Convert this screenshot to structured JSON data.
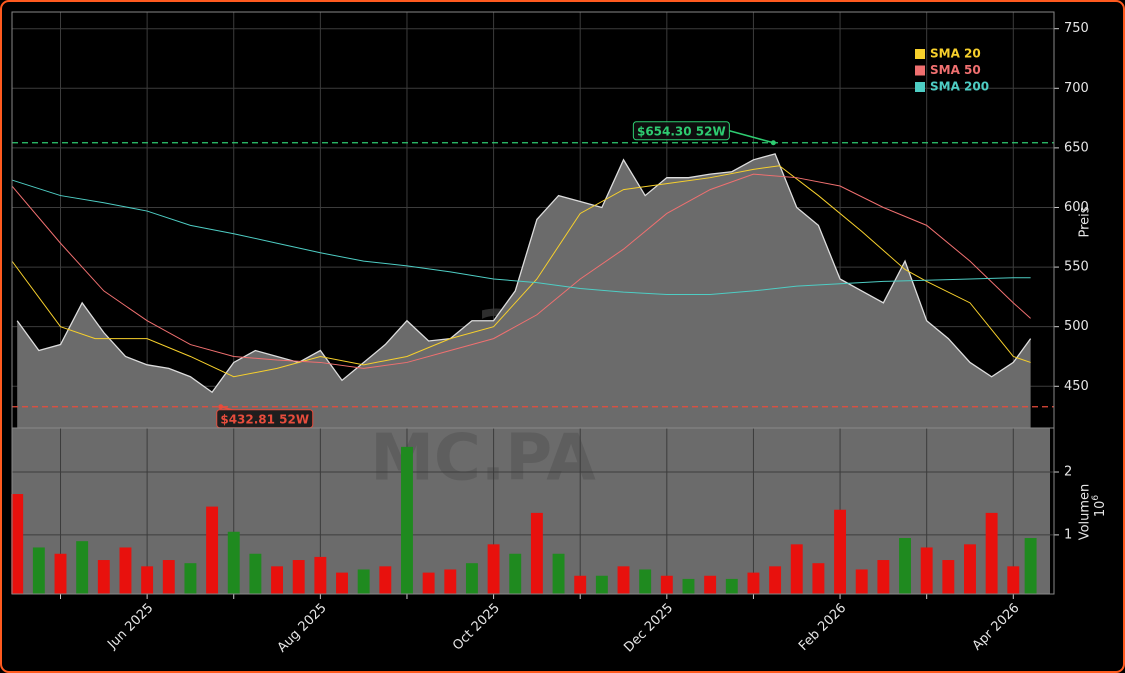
{
  "chart_data": [
    {
      "type": "line",
      "ylabel": "Preis",
      "ylim": [
        415,
        764
      ],
      "yticks": [
        450,
        500,
        550,
        600,
        650,
        700,
        750
      ],
      "xlim": [
        -0.56,
        11.47
      ],
      "xgrid": [
        0,
        1,
        2,
        3,
        4,
        5,
        6,
        7,
        8,
        9,
        10,
        11
      ],
      "grid": true,
      "legend": "upper right",
      "watermark": "ale.trade",
      "series": [
        {
          "color": "#dddddd",
          "fill": "#6b6b6b",
          "x": [
            -0.5,
            -0.25,
            0,
            0.25,
            0.5,
            0.75,
            1,
            1.25,
            1.5,
            1.75,
            2,
            2.25,
            2.5,
            2.75,
            3,
            3.25,
            3.5,
            3.75,
            4,
            4.25,
            4.5,
            4.75,
            5,
            5.25,
            5.5,
            5.75,
            6,
            6.25,
            6.5,
            6.75,
            7,
            7.25,
            7.5,
            7.75,
            8,
            8.25,
            8.5,
            8.75,
            9,
            9.25,
            9.5,
            9.75,
            10,
            10.25,
            10.5,
            10.75,
            11,
            11.2
          ],
          "values": [
            505,
            480,
            485,
            520,
            495,
            475,
            468,
            465,
            458,
            445,
            470,
            480,
            475,
            470,
            480,
            455,
            470,
            485,
            505,
            488,
            490,
            505,
            505,
            530,
            590,
            610,
            605,
            600,
            640,
            610,
            625,
            625,
            628,
            630,
            640,
            645,
            600,
            585,
            540,
            530,
            520,
            555,
            505,
            490,
            470,
            458,
            470,
            490
          ]
        },
        {
          "name": "SMA 20",
          "color": "#f7d02c",
          "x": [
            -0.56,
            0,
            0.4,
            1,
            1.5,
            2,
            2.5,
            3,
            3.5,
            4,
            4.5,
            5,
            5.5,
            6,
            6.5,
            7,
            7.5,
            8,
            8.3,
            8.75,
            9.25,
            9.75,
            10,
            10.5,
            11,
            11.2
          ],
          "values": [
            555,
            500,
            490,
            490,
            475,
            458,
            465,
            475,
            468,
            475,
            490,
            500,
            540,
            595,
            615,
            620,
            625,
            632,
            635,
            610,
            580,
            548,
            538,
            520,
            475,
            470
          ]
        },
        {
          "name": "SMA 50",
          "color": "#f07070",
          "x": [
            -0.56,
            0,
            0.5,
            1,
            1.5,
            2,
            2.5,
            3,
            3.5,
            4,
            4.5,
            5,
            5.5,
            6,
            6.5,
            7,
            7.5,
            8,
            8.5,
            9,
            9.5,
            10,
            10.5,
            11,
            11.2
          ],
          "values": [
            618,
            570,
            530,
            505,
            485,
            475,
            472,
            470,
            465,
            470,
            480,
            490,
            510,
            540,
            565,
            595,
            615,
            628,
            625,
            618,
            600,
            585,
            555,
            520,
            507
          ]
        },
        {
          "name": "SMA 200",
          "color": "#4ecdc4",
          "x": [
            -0.56,
            0,
            0.5,
            1,
            1.5,
            2,
            2.5,
            3,
            3.5,
            4,
            4.5,
            5,
            5.5,
            6,
            6.5,
            7,
            7.5,
            8,
            8.5,
            9,
            9.5,
            10,
            10.5,
            11,
            11.2
          ],
          "values": [
            623,
            610,
            604,
            597,
            585,
            578,
            570,
            562,
            555,
            551,
            546,
            540,
            537,
            532,
            529,
            527,
            527,
            530,
            534,
            536,
            538,
            539,
            540,
            541,
            541
          ]
        }
      ],
      "annotations": [
        {
          "label": "$654.30 52W",
          "value": 654.3,
          "x": 8.23,
          "color": "#2ecc71"
        },
        {
          "label": "$432.81 52W",
          "value": 432.81,
          "x": 1.85,
          "color": "#e74c3c"
        }
      ]
    },
    {
      "type": "bar",
      "ylabel": "Volumen",
      "exponent": "10",
      "exponent_power": "6",
      "ylim": [
        0.06,
        2.7
      ],
      "yticks": [
        1,
        2
      ],
      "xlim": [
        -0.56,
        11.47
      ],
      "xgrid": [
        0,
        1,
        2,
        3,
        4,
        5,
        6,
        7,
        8,
        9,
        10,
        11
      ],
      "xticks": [
        {
          "value": 1,
          "label": "Jun 2025"
        },
        {
          "value": 3,
          "label": "Aug 2025"
        },
        {
          "value": 5,
          "label": "Oct 2025"
        },
        {
          "value": 7,
          "label": "Dec 2025"
        },
        {
          "value": 9,
          "label": "Feb 2026"
        },
        {
          "value": 11,
          "label": "Apr 2026"
        }
      ],
      "watermark": "MC.PA",
      "x": [
        -0.5,
        -0.25,
        0,
        0.25,
        0.5,
        0.75,
        1,
        1.25,
        1.5,
        1.75,
        2,
        2.25,
        2.5,
        2.75,
        3,
        3.25,
        3.5,
        3.75,
        4,
        4.25,
        4.5,
        4.75,
        5,
        5.25,
        5.5,
        5.75,
        6,
        6.25,
        6.5,
        6.75,
        7,
        7.25,
        7.5,
        7.75,
        8,
        8.25,
        8.5,
        8.75,
        9,
        9.25,
        9.5,
        9.75,
        10,
        10.25,
        10.5,
        10.75,
        11,
        11.2
      ],
      "values": [
        1.65,
        0.8,
        0.7,
        0.9,
        0.6,
        0.8,
        0.5,
        0.6,
        0.55,
        1.45,
        1.05,
        0.7,
        0.5,
        0.6,
        0.65,
        0.4,
        0.45,
        0.5,
        2.4,
        0.4,
        0.45,
        0.55,
        0.85,
        0.7,
        1.35,
        0.7,
        0.35,
        0.35,
        0.5,
        0.45,
        0.35,
        0.3,
        0.35,
        0.3,
        0.4,
        0.5,
        0.85,
        0.55,
        1.4,
        0.45,
        0.6,
        0.95,
        0.8,
        0.6,
        0.85,
        1.35,
        0.5,
        0.95
      ],
      "colors": [
        "#e8110d",
        "#1f8a1f",
        "#e8110d",
        "#1f8a1f",
        "#e8110d",
        "#e8110d",
        "#e8110d",
        "#e8110d",
        "#1f8a1f",
        "#e8110d",
        "#1f8a1f",
        "#1f8a1f",
        "#e8110d",
        "#e8110d",
        "#e8110d",
        "#e8110d",
        "#1f8a1f",
        "#e8110d",
        "#1f8a1f",
        "#e8110d",
        "#e8110d",
        "#1f8a1f",
        "#e8110d",
        "#1f8a1f",
        "#e8110d",
        "#1f8a1f",
        "#e8110d",
        "#1f8a1f",
        "#e8110d",
        "#1f8a1f",
        "#e8110d",
        "#1f8a1f",
        "#e8110d",
        "#1f8a1f",
        "#e8110d",
        "#e8110d",
        "#e8110d",
        "#e8110d",
        "#e8110d",
        "#e8110d",
        "#e8110d",
        "#1f8a1f",
        "#e8110d",
        "#e8110d",
        "#e8110d",
        "#e8110d",
        "#e8110d",
        "#1f8a1f"
      ]
    }
  ]
}
